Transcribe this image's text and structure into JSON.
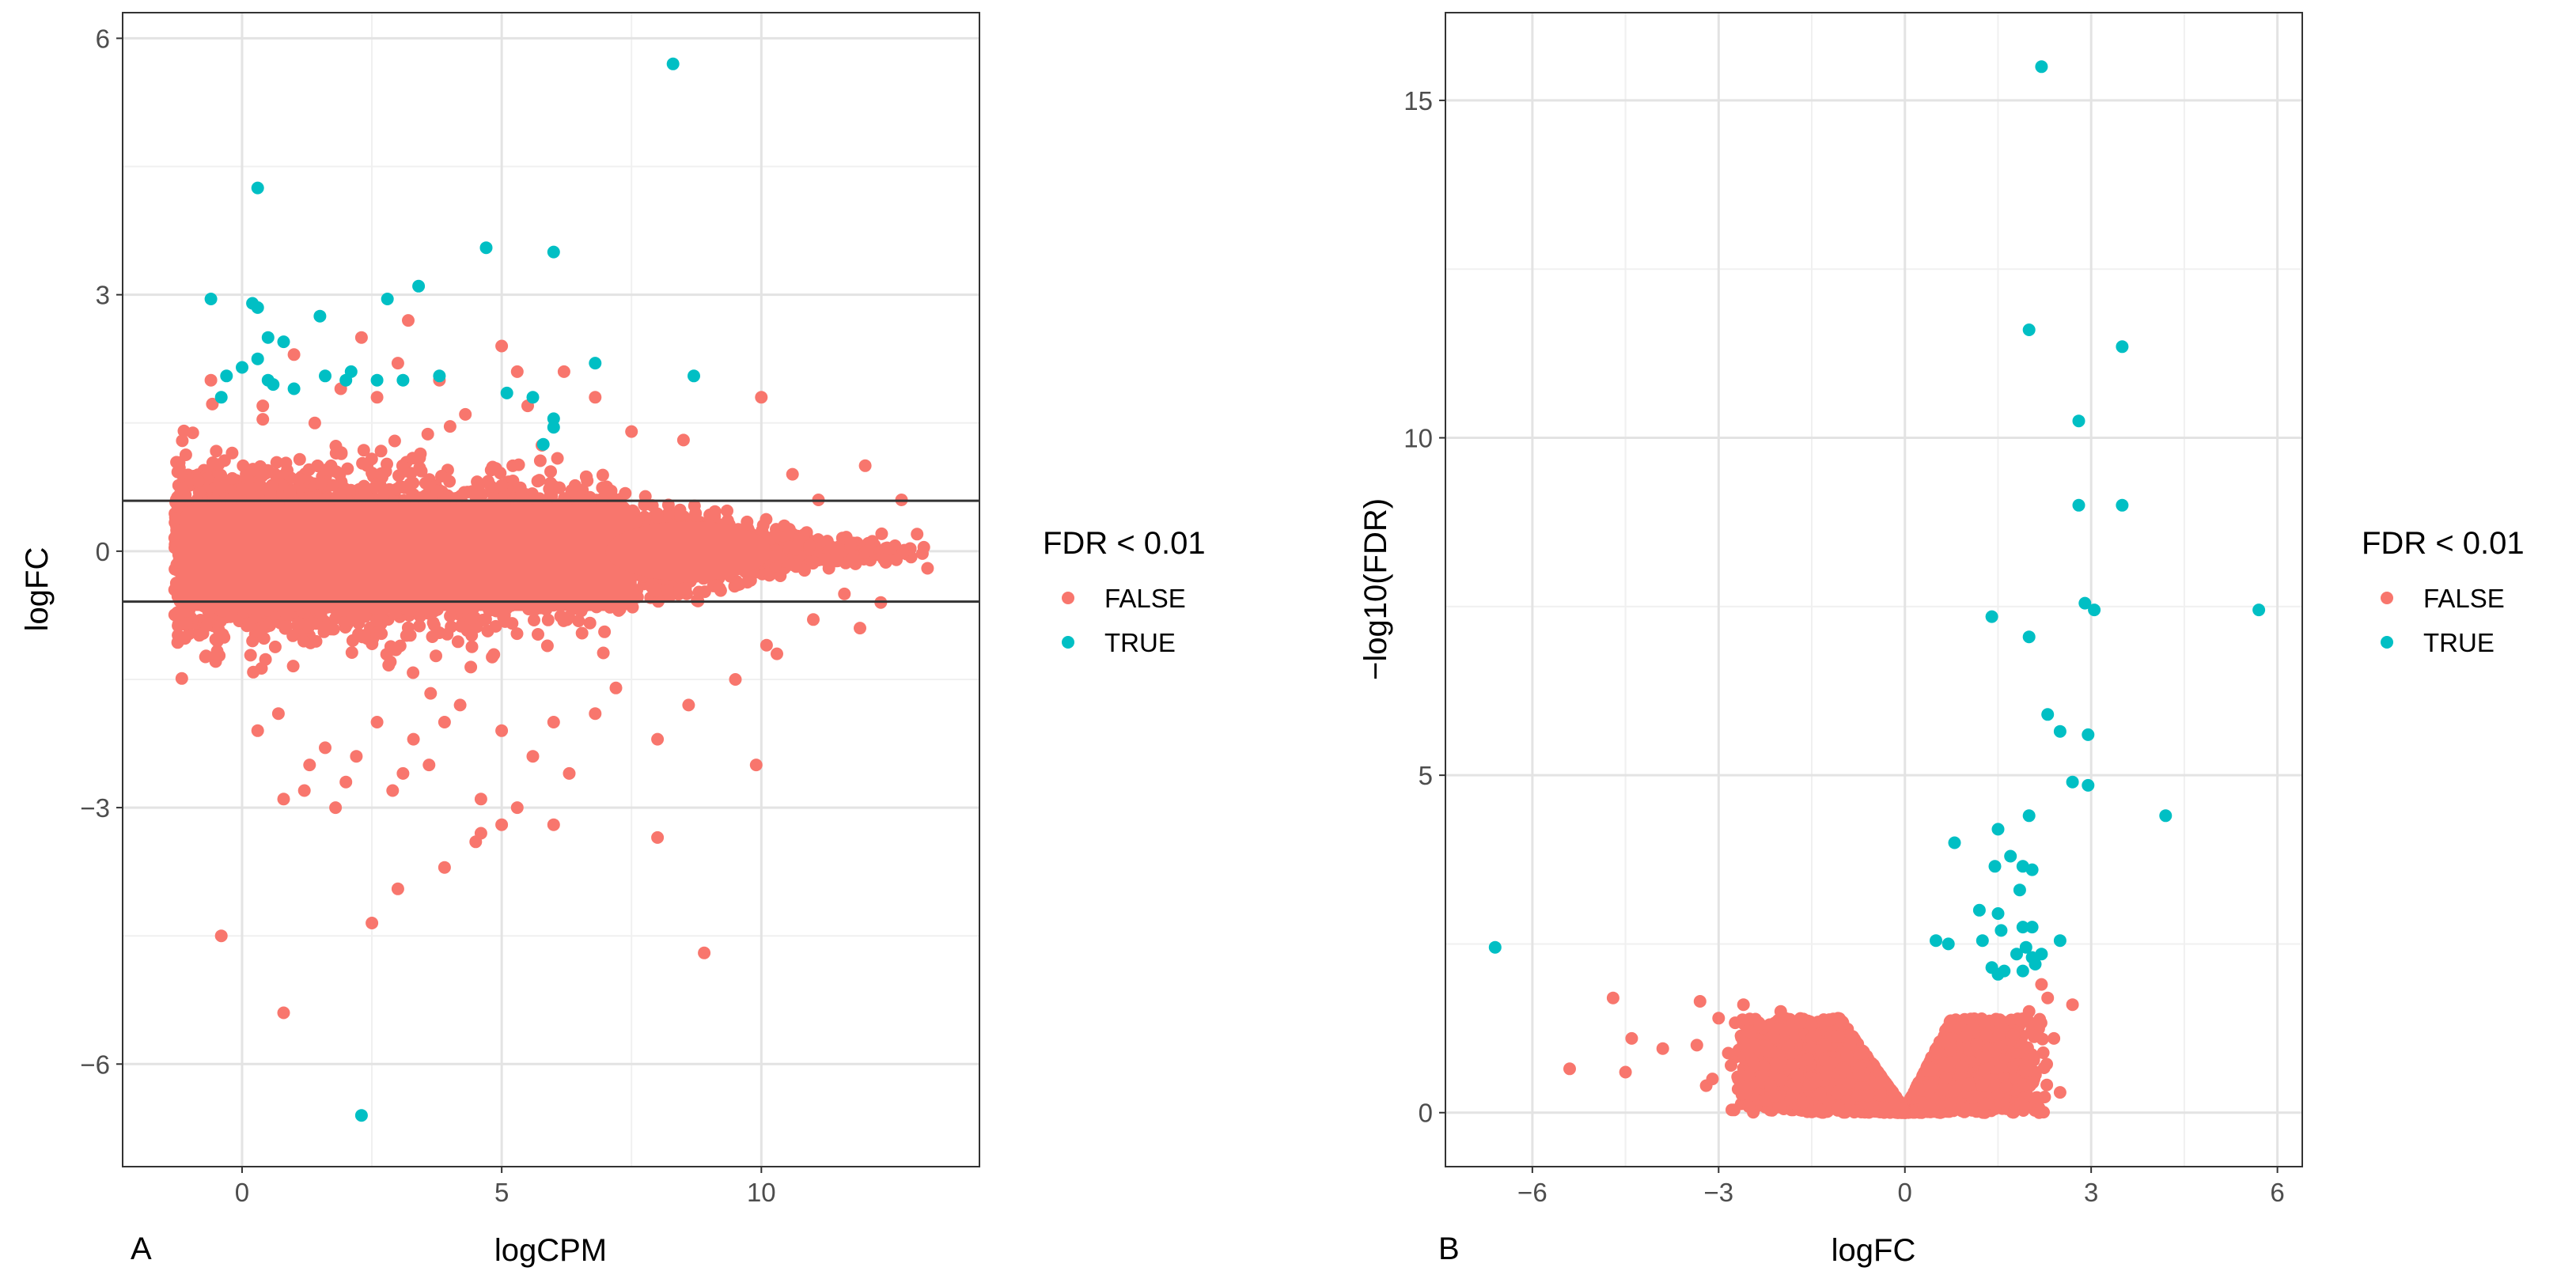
{
  "legend": {
    "title": "FDR < 0.01",
    "entries": [
      {
        "label": "FALSE",
        "color": "#F8766D"
      },
      {
        "label": "TRUE",
        "color": "#00BFC4"
      }
    ]
  },
  "panels": [
    {
      "tag": "A"
    },
    {
      "tag": "B"
    }
  ],
  "chart_data": [
    {
      "type": "scatter",
      "title": "",
      "xlabel": "logCPM",
      "ylabel": "logFC",
      "xlim": [
        -2.3,
        14.2
      ],
      "ylim": [
        -7.2,
        6.3
      ],
      "xticks": [
        0,
        5,
        10
      ],
      "yticks": [
        -6,
        -3,
        0,
        3,
        6
      ],
      "tick_labels_x": [
        "0",
        "5",
        "10"
      ],
      "tick_labels_y": [
        "−6",
        "−3",
        "0",
        "3",
        "6"
      ],
      "grid": true,
      "hlines": [
        0.59,
        -0.59
      ],
      "legend_position": "right",
      "dense_cloud": {
        "series": "FALSE",
        "x_range": [
          -1.3,
          13.2
        ],
        "y_center": 0,
        "y_spread": 0.9
      },
      "series": [
        {
          "name": "FALSE",
          "color": "#F8766D",
          "points": [
            [
              -0.6,
              2.0
            ],
            [
              0.4,
              1.7
            ],
            [
              1.0,
              2.3
            ],
            [
              1.4,
              1.5
            ],
            [
              1.9,
              1.9
            ],
            [
              2.3,
              2.5
            ],
            [
              2.6,
              1.8
            ],
            [
              3.2,
              2.7
            ],
            [
              3.0,
              2.2
            ],
            [
              3.8,
              2.0
            ],
            [
              4.3,
              1.6
            ],
            [
              5.0,
              2.4
            ],
            [
              5.3,
              2.1
            ],
            [
              5.5,
              1.7
            ],
            [
              6.2,
              2.1
            ],
            [
              6.8,
              1.8
            ],
            [
              7.5,
              1.4
            ],
            [
              8.5,
              1.3
            ],
            [
              10.0,
              1.8
            ],
            [
              12.0,
              1.0
            ],
            [
              12.7,
              0.6
            ],
            [
              13.0,
              0.2
            ],
            [
              12.6,
              -0.1
            ],
            [
              13.2,
              -0.2
            ],
            [
              12.3,
              -0.6
            ],
            [
              11.6,
              -0.5
            ],
            [
              11.9,
              -0.9
            ],
            [
              11.0,
              -0.8
            ],
            [
              11.3,
              -0.2
            ],
            [
              10.6,
              0.9
            ],
            [
              11.1,
              0.6
            ],
            [
              10.1,
              -1.1
            ],
            [
              0.3,
              -2.1
            ],
            [
              0.7,
              -1.9
            ],
            [
              1.3,
              -2.5
            ],
            [
              1.6,
              -2.3
            ],
            [
              1.8,
              -3.0
            ],
            [
              2.0,
              -2.7
            ],
            [
              2.2,
              -2.4
            ],
            [
              2.6,
              -2.0
            ],
            [
              2.9,
              -2.8
            ],
            [
              3.1,
              -2.6
            ],
            [
              3.3,
              -2.2
            ],
            [
              3.6,
              -2.5
            ],
            [
              3.9,
              -2.0
            ],
            [
              4.2,
              -1.8
            ],
            [
              4.6,
              -2.9
            ],
            [
              5.0,
              -2.1
            ],
            [
              5.3,
              -3.0
            ],
            [
              5.6,
              -2.4
            ],
            [
              6.0,
              -2.0
            ],
            [
              6.3,
              -2.6
            ],
            [
              6.8,
              -1.9
            ],
            [
              7.2,
              -1.6
            ],
            [
              8.0,
              -2.2
            ],
            [
              8.6,
              -1.8
            ],
            [
              9.5,
              -1.5
            ],
            [
              10.3,
              -1.2
            ],
            [
              0.8,
              -2.9
            ],
            [
              1.2,
              -2.8
            ],
            [
              -0.4,
              -4.5
            ],
            [
              0.8,
              -5.4
            ],
            [
              2.5,
              -4.35
            ],
            [
              3.0,
              -3.95
            ],
            [
              3.9,
              -3.7
            ],
            [
              4.5,
              -3.4
            ],
            [
              4.6,
              -3.3
            ],
            [
              5.0,
              -3.2
            ],
            [
              6.0,
              -3.2
            ],
            [
              8.0,
              -3.35
            ],
            [
              8.9,
              -4.7
            ],
            [
              9.9,
              -2.5
            ]
          ]
        },
        {
          "name": "TRUE",
          "color": "#00BFC4",
          "points": [
            [
              8.3,
              5.7
            ],
            [
              0.3,
              4.25
            ],
            [
              4.7,
              3.55
            ],
            [
              6.0,
              3.5
            ],
            [
              -0.6,
              2.95
            ],
            [
              0.2,
              2.9
            ],
            [
              0.3,
              2.85
            ],
            [
              1.5,
              2.75
            ],
            [
              2.8,
              2.95
            ],
            [
              3.4,
              3.1
            ],
            [
              0.5,
              2.5
            ],
            [
              0.8,
              2.45
            ],
            [
              0.0,
              2.15
            ],
            [
              -0.3,
              2.05
            ],
            [
              0.3,
              2.25
            ],
            [
              0.6,
              1.95
            ],
            [
              1.0,
              1.9
            ],
            [
              1.6,
              2.05
            ],
            [
              2.0,
              2.0
            ],
            [
              2.6,
              2.0
            ],
            [
              3.8,
              2.05
            ],
            [
              6.8,
              2.2
            ],
            [
              8.7,
              2.05
            ],
            [
              0.5,
              2.0
            ],
            [
              -0.4,
              1.8
            ],
            [
              5.1,
              1.85
            ],
            [
              5.6,
              1.8
            ],
            [
              6.0,
              1.55
            ],
            [
              6.0,
              1.45
            ],
            [
              5.8,
              1.25
            ],
            [
              2.1,
              2.1
            ],
            [
              3.1,
              2.0
            ],
            [
              2.3,
              -6.6
            ]
          ]
        }
      ]
    },
    {
      "type": "scatter",
      "title": "",
      "xlabel": "logFC",
      "ylabel": "−log10(FDR)",
      "xlim": [
        -7.4,
        6.4
      ],
      "ylim": [
        -0.8,
        16.3
      ],
      "xticks": [
        -6,
        -3,
        0,
        3,
        6
      ],
      "yticks": [
        0,
        5,
        10,
        15
      ],
      "tick_labels_x": [
        "−6",
        "−3",
        "0",
        "3",
        "6"
      ],
      "tick_labels_y": [
        "0",
        "5",
        "10",
        "15"
      ],
      "grid": true,
      "legend_position": "right",
      "dense_cloud": {
        "series": "FALSE",
        "shape": "V",
        "x_range": [
          -3.2,
          2.6
        ],
        "y_max": 1.4
      },
      "series": [
        {
          "name": "FALSE",
          "color": "#F8766D",
          "points": [
            [
              -5.4,
              0.65
            ],
            [
              -4.7,
              1.7
            ],
            [
              -4.5,
              0.6
            ],
            [
              -4.4,
              1.1
            ],
            [
              -3.9,
              0.95
            ],
            [
              -3.35,
              1.0
            ],
            [
              -3.3,
              1.65
            ],
            [
              -3.2,
              0.4
            ],
            [
              -3.1,
              0.5
            ],
            [
              -3.0,
              1.4
            ],
            [
              -2.8,
              0.7
            ],
            [
              -2.6,
              1.6
            ],
            [
              -2.5,
              1.2
            ],
            [
              -2.2,
              0.9
            ],
            [
              -2.0,
              1.5
            ],
            [
              -1.8,
              0.3
            ],
            [
              -1.5,
              1.3
            ],
            [
              2.0,
              1.5
            ],
            [
              2.2,
              1.9
            ],
            [
              2.4,
              1.1
            ],
            [
              2.5,
              0.3
            ],
            [
              2.7,
              1.6
            ],
            [
              1.9,
              1.35
            ],
            [
              2.3,
              1.7
            ]
          ]
        },
        {
          "name": "TRUE",
          "color": "#00BFC4",
          "points": [
            [
              2.2,
              15.5
            ],
            [
              2.0,
              11.6
            ],
            [
              3.5,
              11.35
            ],
            [
              2.8,
              10.25
            ],
            [
              2.8,
              9.0
            ],
            [
              3.5,
              9.0
            ],
            [
              2.9,
              7.55
            ],
            [
              3.05,
              7.45
            ],
            [
              5.7,
              7.45
            ],
            [
              1.4,
              7.35
            ],
            [
              2.0,
              7.05
            ],
            [
              2.3,
              5.9
            ],
            [
              2.5,
              5.65
            ],
            [
              2.95,
              5.6
            ],
            [
              2.7,
              4.9
            ],
            [
              2.95,
              4.85
            ],
            [
              1.5,
              4.2
            ],
            [
              2.0,
              4.4
            ],
            [
              4.2,
              4.4
            ],
            [
              0.8,
              4.0
            ],
            [
              1.7,
              3.8
            ],
            [
              1.45,
              3.65
            ],
            [
              1.9,
              3.65
            ],
            [
              2.05,
              3.6
            ],
            [
              1.85,
              3.3
            ],
            [
              1.2,
              3.0
            ],
            [
              1.5,
              2.95
            ],
            [
              1.55,
              2.7
            ],
            [
              1.9,
              2.75
            ],
            [
              2.05,
              2.75
            ],
            [
              1.25,
              2.55
            ],
            [
              1.95,
              2.45
            ],
            [
              0.5,
              2.55
            ],
            [
              0.7,
              2.5
            ],
            [
              2.5,
              2.55
            ],
            [
              1.8,
              2.35
            ],
            [
              2.05,
              2.3
            ],
            [
              2.2,
              2.35
            ],
            [
              1.4,
              2.15
            ],
            [
              1.6,
              2.1
            ],
            [
              -6.6,
              2.45
            ],
            [
              2.1,
              2.2
            ],
            [
              1.9,
              2.1
            ],
            [
              1.5,
              2.05
            ]
          ]
        }
      ]
    }
  ]
}
